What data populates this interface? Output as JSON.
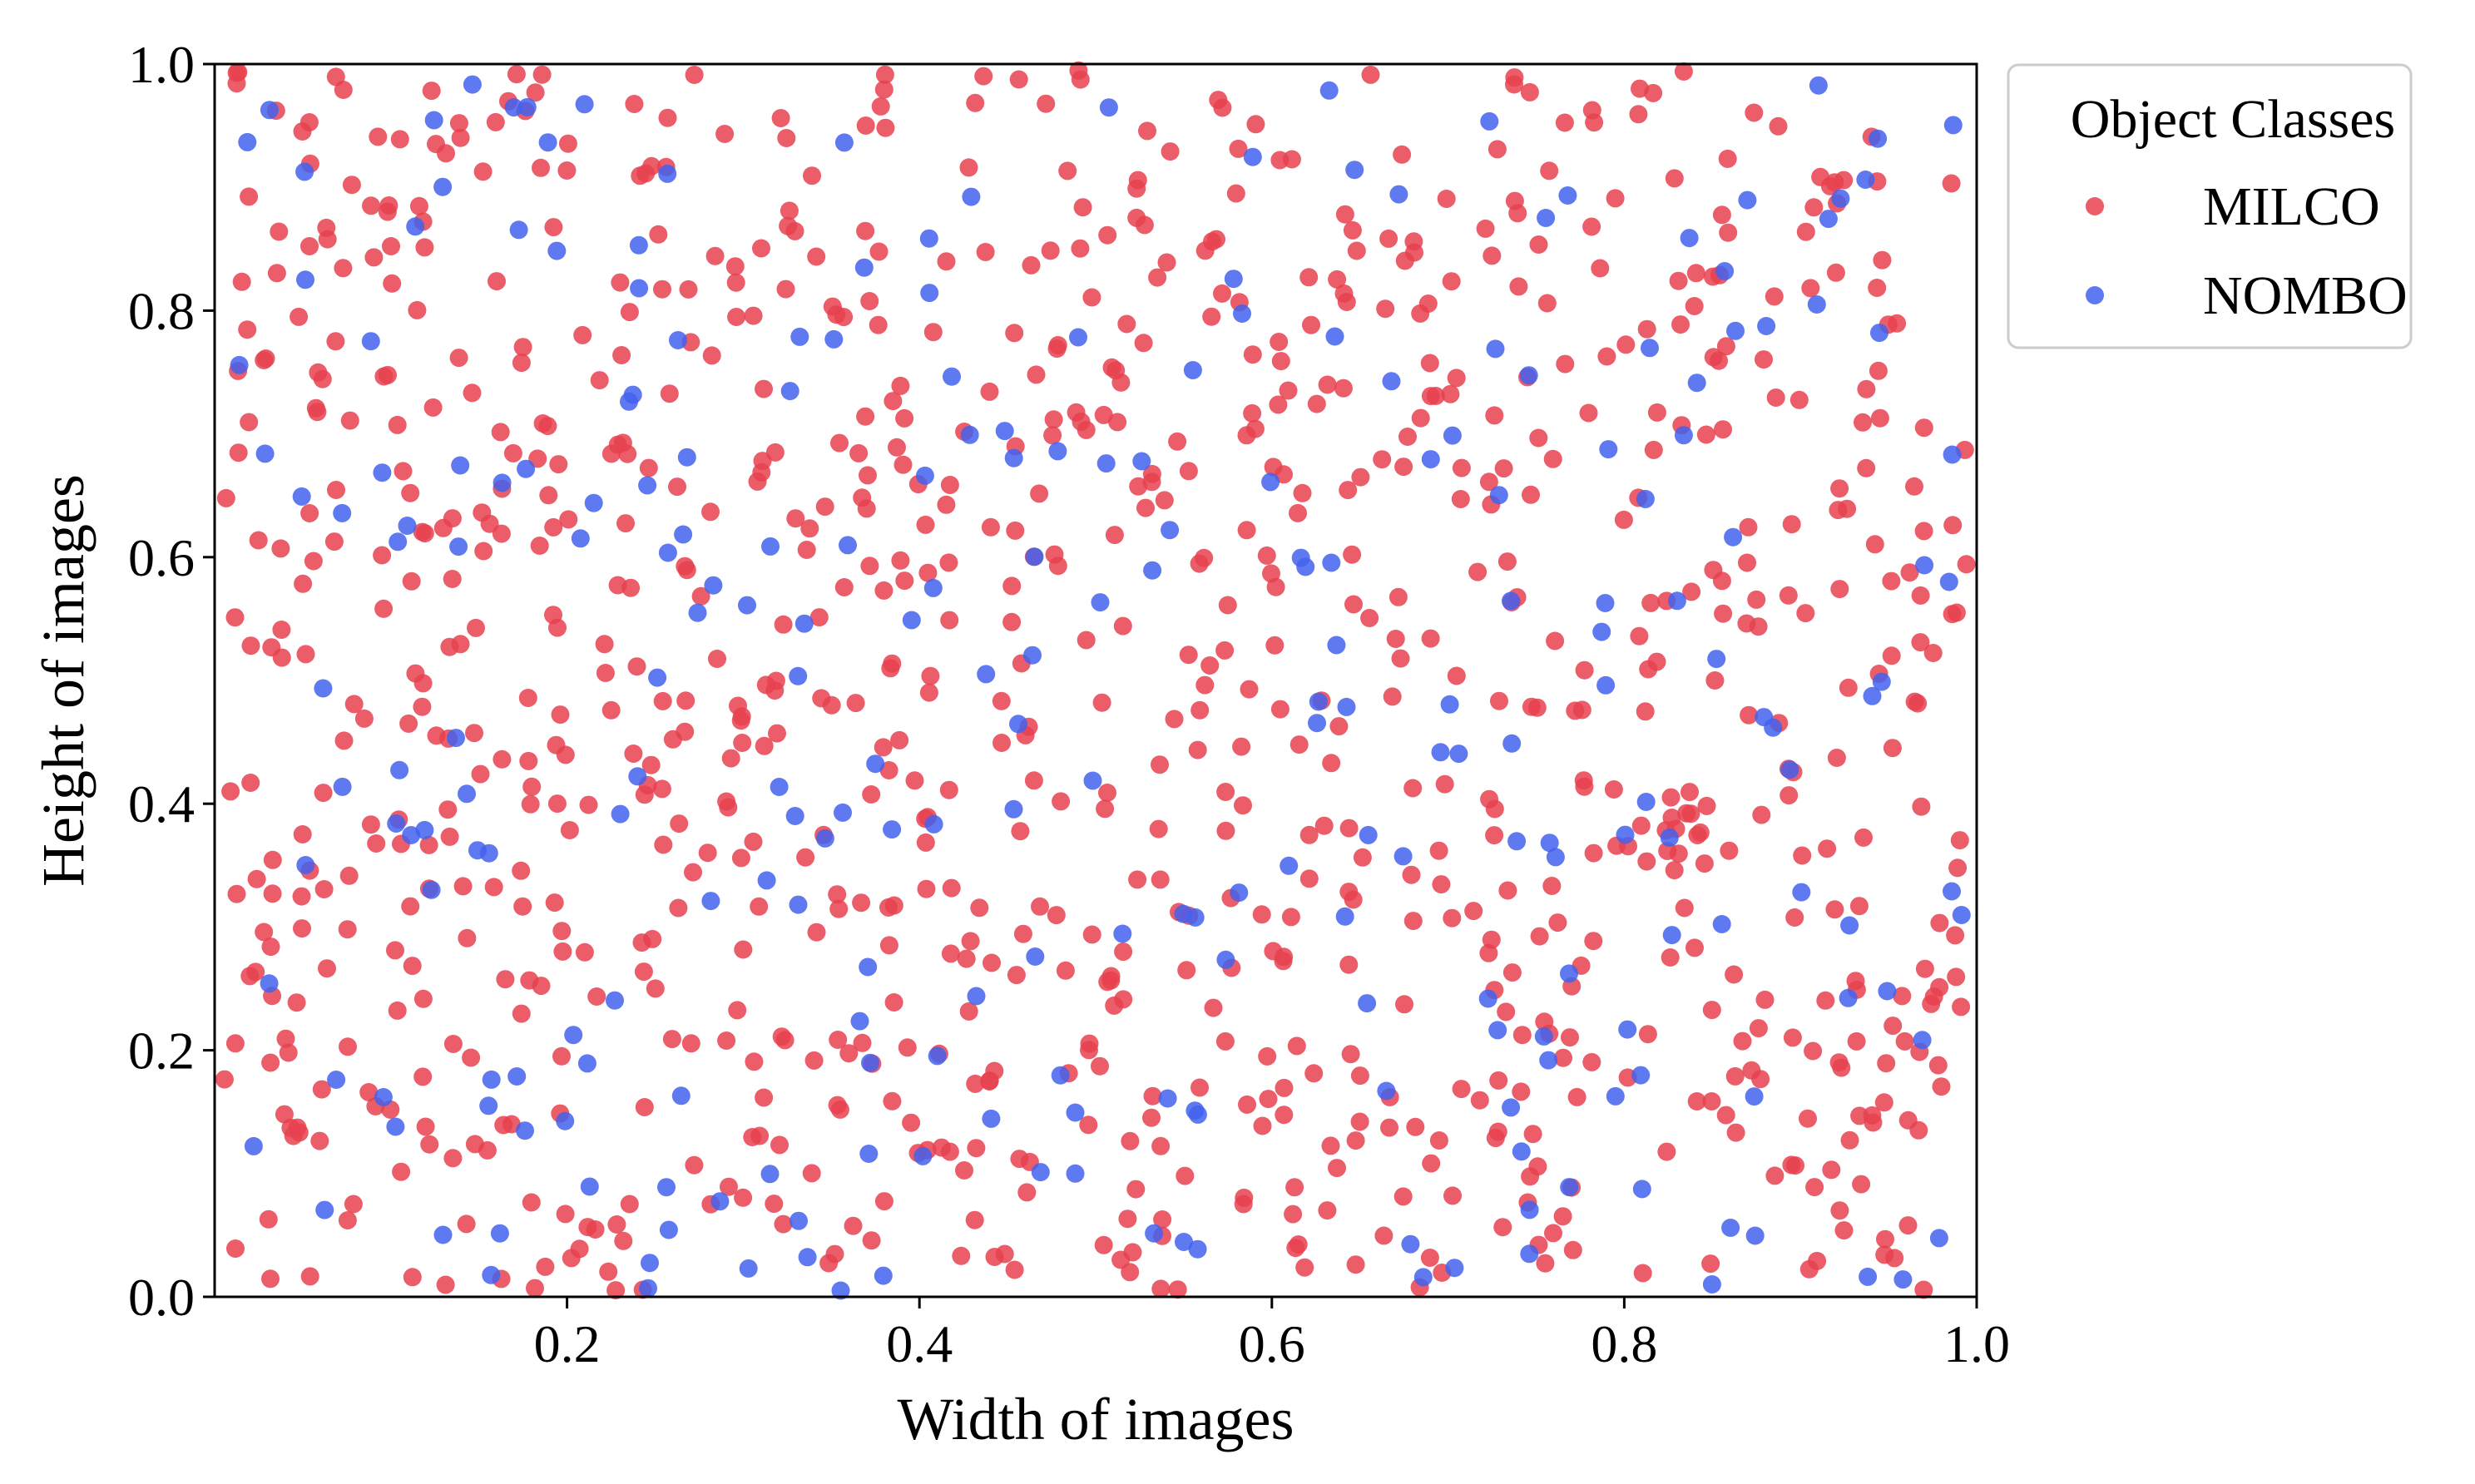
{
  "chart_data": {
    "type": "scatter",
    "title": "",
    "xlabel": "Width of images",
    "ylabel": "Height of images",
    "xlim": [
      0.0,
      1.0
    ],
    "ylim": [
      0.0,
      1.0
    ],
    "xticks": [
      "0.2",
      "0.4",
      "0.6",
      "0.8",
      "1.0"
    ],
    "yticks": [
      "0.0",
      "0.2",
      "0.4",
      "0.6",
      "0.8",
      "1.0"
    ],
    "grid": false,
    "legend": {
      "title": "Object Classes",
      "placement": "outside-top-right"
    },
    "series": [
      {
        "name": "MILCO",
        "color": "#e8414f",
        "points_note": "approx. 1000 points spread uniformly over the unit square",
        "count": 1000,
        "seed": 7
      },
      {
        "name": "NOMBO",
        "color": "#4361ee",
        "points_note": "approx. 260 points spread uniformly over the unit square",
        "count": 260,
        "seed": 19
      }
    ]
  }
}
